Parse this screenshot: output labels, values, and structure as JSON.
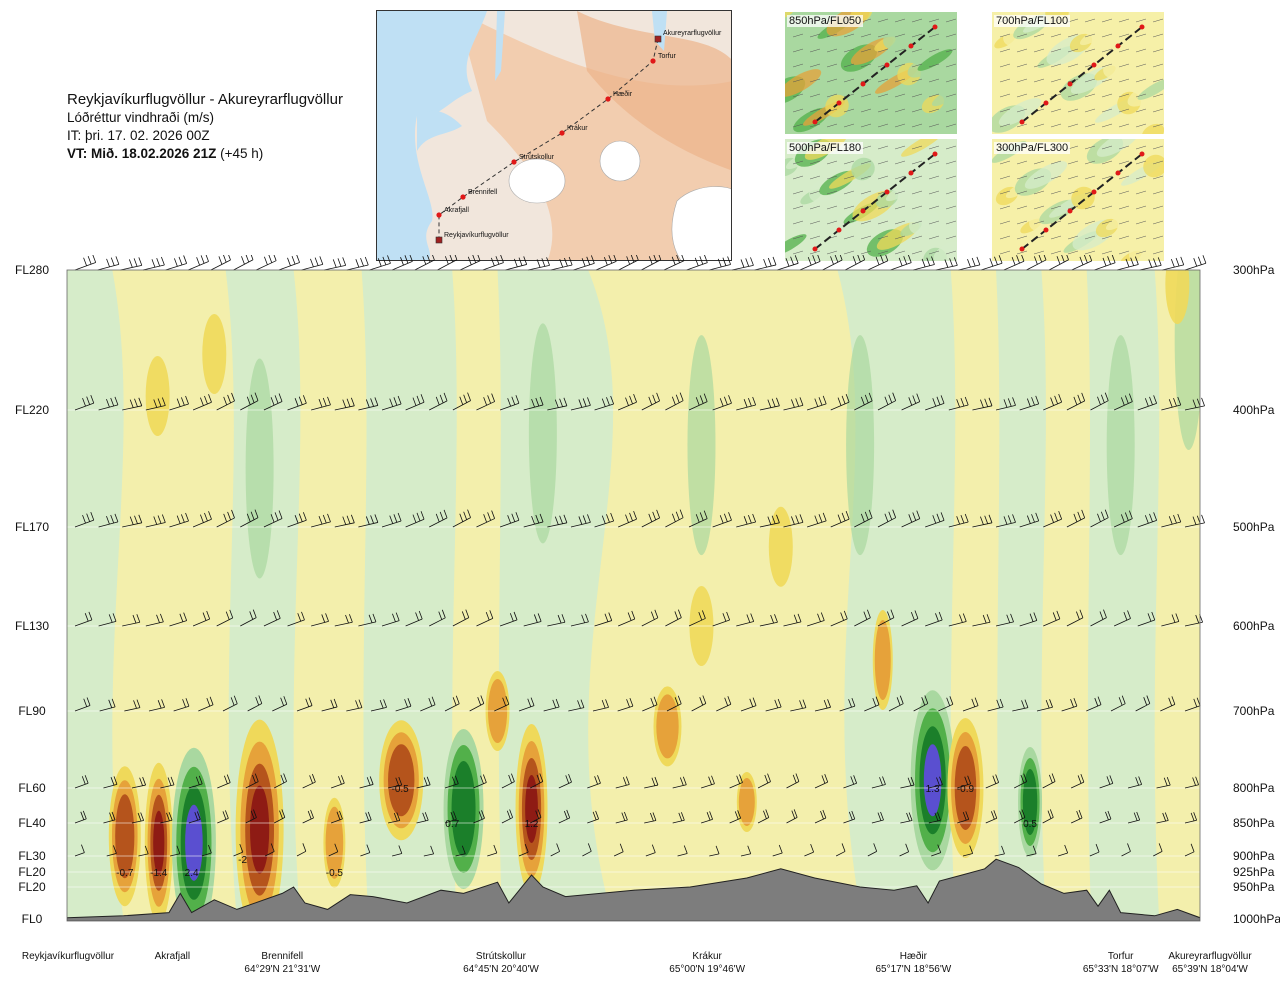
{
  "header": {
    "route": "Reykjavíkurflugvöllur - Akureyrarflugvöllur",
    "variable": "Lóðréttur vindhraði (m/s)",
    "issue_time": "IT: þri. 17. 02. 2026 00Z",
    "valid_time_bold": "VT: Mið. 18.02.2026 21Z",
    "valid_time_offset": "(+45 h)"
  },
  "route_map": {
    "points": [
      {
        "name": "Akureyrarflugvöllur",
        "type": "airport"
      },
      {
        "name": "Torfur",
        "type": "waypoint"
      },
      {
        "name": "Hæðir",
        "type": "waypoint"
      },
      {
        "name": "Krákur",
        "type": "waypoint"
      },
      {
        "name": "Strútskollur",
        "type": "waypoint"
      },
      {
        "name": "Brennifell",
        "type": "waypoint"
      },
      {
        "name": "Akrafjall",
        "type": "waypoint"
      },
      {
        "name": "Reykjavíkurflugvöllur",
        "type": "airport"
      }
    ]
  },
  "mini_panels": [
    {
      "label": "850hPa/FL050"
    },
    {
      "label": "700hPa/FL100"
    },
    {
      "label": "500hPa/FL180"
    },
    {
      "label": "300hPa/FL300"
    }
  ],
  "chart_data": {
    "type": "heatmap",
    "title": "Reykjavíkurflugvöllur - Akureyrarflugvöllur",
    "subtitle": "Lóðréttur vindhraði (m/s)",
    "left_axis_ticks": [
      {
        "label": "FL280",
        "hpa": 300
      },
      {
        "label": "FL220",
        "hpa": 400
      },
      {
        "label": "FL170",
        "hpa": 500
      },
      {
        "label": "FL130",
        "hpa": 600
      },
      {
        "label": "FL90",
        "hpa": 700
      },
      {
        "label": "FL60",
        "hpa": 800
      },
      {
        "label": "FL40",
        "hpa": 850
      },
      {
        "label": "FL30",
        "hpa": 900
      },
      {
        "label": "FL20",
        "hpa": 925
      },
      {
        "label": "FL20",
        "hpa": 950
      },
      {
        "label": "FL0",
        "hpa": 1000
      }
    ],
    "right_axis_ticks": [
      "300hPa",
      "400hPa",
      "500hPa",
      "600hPa",
      "700hPa",
      "800hPa",
      "850hPa",
      "900hPa",
      "925hPa",
      "950hPa",
      "1000hPa"
    ],
    "stations": [
      {
        "name": "Reykjavíkurflugvöllur",
        "coord": "",
        "dist": 0
      },
      {
        "name": "Akrafjall",
        "coord": "",
        "dist": 0.093
      },
      {
        "name": "Brennifell",
        "coord": "64°29'N 21°31'W",
        "dist": 0.19
      },
      {
        "name": "Strútskollur",
        "coord": "64°45'N 20°40'W",
        "dist": 0.383
      },
      {
        "name": "Krákur",
        "coord": "65°00'N 19°46'W",
        "dist": 0.565
      },
      {
        "name": "Hæðir",
        "coord": "65°17'N 18°56'W",
        "dist": 0.747
      },
      {
        "name": "Torfur",
        "coord": "65°33'N 18°07'W",
        "dist": 0.93
      },
      {
        "name": "Akureyrarflugvöllur",
        "coord": "65°39'N 18°04'W",
        "dist": 0.996
      }
    ],
    "annotations": [
      {
        "text": "-0.7",
        "dist": 0.051,
        "hpa": 925
      },
      {
        "text": "-1.4",
        "dist": 0.081,
        "hpa": 925
      },
      {
        "text": "2.4",
        "dist": 0.11,
        "hpa": 925
      },
      {
        "text": "-2",
        "dist": 0.155,
        "hpa": 905
      },
      {
        "text": "-0.5",
        "dist": 0.236,
        "hpa": 925
      },
      {
        "text": "-0.5",
        "dist": 0.294,
        "hpa": 800
      },
      {
        "text": "0.7",
        "dist": 0.34,
        "hpa": 850
      },
      {
        "text": "1.2",
        "dist": 0.41,
        "hpa": 850
      },
      {
        "text": "1.3",
        "dist": 0.764,
        "hpa": 800
      },
      {
        "text": "-0.9",
        "dist": 0.793,
        "hpa": 800
      },
      {
        "text": "0.5",
        "dist": 0.85,
        "hpa": 850
      }
    ],
    "colors": {
      "strong_up": "#5a4fd0",
      "up3": "#1b7f2a",
      "up2": "#52b04a",
      "up1": "#a9d8a0",
      "weak_up": "#d6ecc9",
      "weak_down": "#f6f0a8",
      "down1": "#efd95a",
      "down2": "#e6a23a",
      "down3": "#b5541c",
      "strong_down": "#8e1b14",
      "terrain": "#7d7d7d"
    }
  }
}
